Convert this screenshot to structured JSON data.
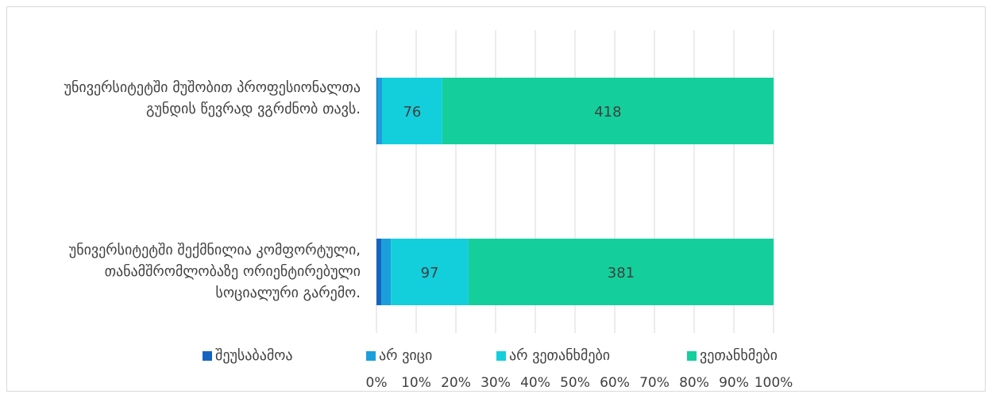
{
  "chart_data": {
    "type": "bar",
    "orientation": "horizontal",
    "stacked": "100%",
    "categories": [
      "უნივერსიტეტში მუშობით პროფესიონალთა გუნდის წევრად ვგრძნობ თავს.",
      "უნივერსიტეტში შექმნილია კომფორტული, თანამშრომლობაზე ორიენტირებული სოციალური გარემო."
    ],
    "series": [
      {
        "name": "შეუსაბამოა",
        "color": "#1565c0",
        "values": [
          1,
          6
        ]
      },
      {
        "name": "არ ვიცი",
        "color": "#1b9fdb",
        "values": [
          6,
          12
        ]
      },
      {
        "name": "არ ვეთანხმები",
        "color": "#13cfdc",
        "values": [
          76,
          97
        ]
      },
      {
        "name": "ვეთანხმები",
        "color": "#14cf9b",
        "values": [
          418,
          381
        ]
      }
    ],
    "data_labels": [
      {
        "category": 0,
        "series": 2,
        "text": "76"
      },
      {
        "category": 0,
        "series": 3,
        "text": "418"
      },
      {
        "category": 1,
        "series": 2,
        "text": "97"
      },
      {
        "category": 1,
        "series": 3,
        "text": "381"
      }
    ],
    "x_ticks": [
      "0%",
      "10%",
      "20%",
      "30%",
      "40%",
      "50%",
      "60%",
      "70%",
      "80%",
      "90%",
      "100%"
    ],
    "xlim": [
      0,
      100
    ],
    "grid": "vertical",
    "legend_position": "bottom"
  }
}
